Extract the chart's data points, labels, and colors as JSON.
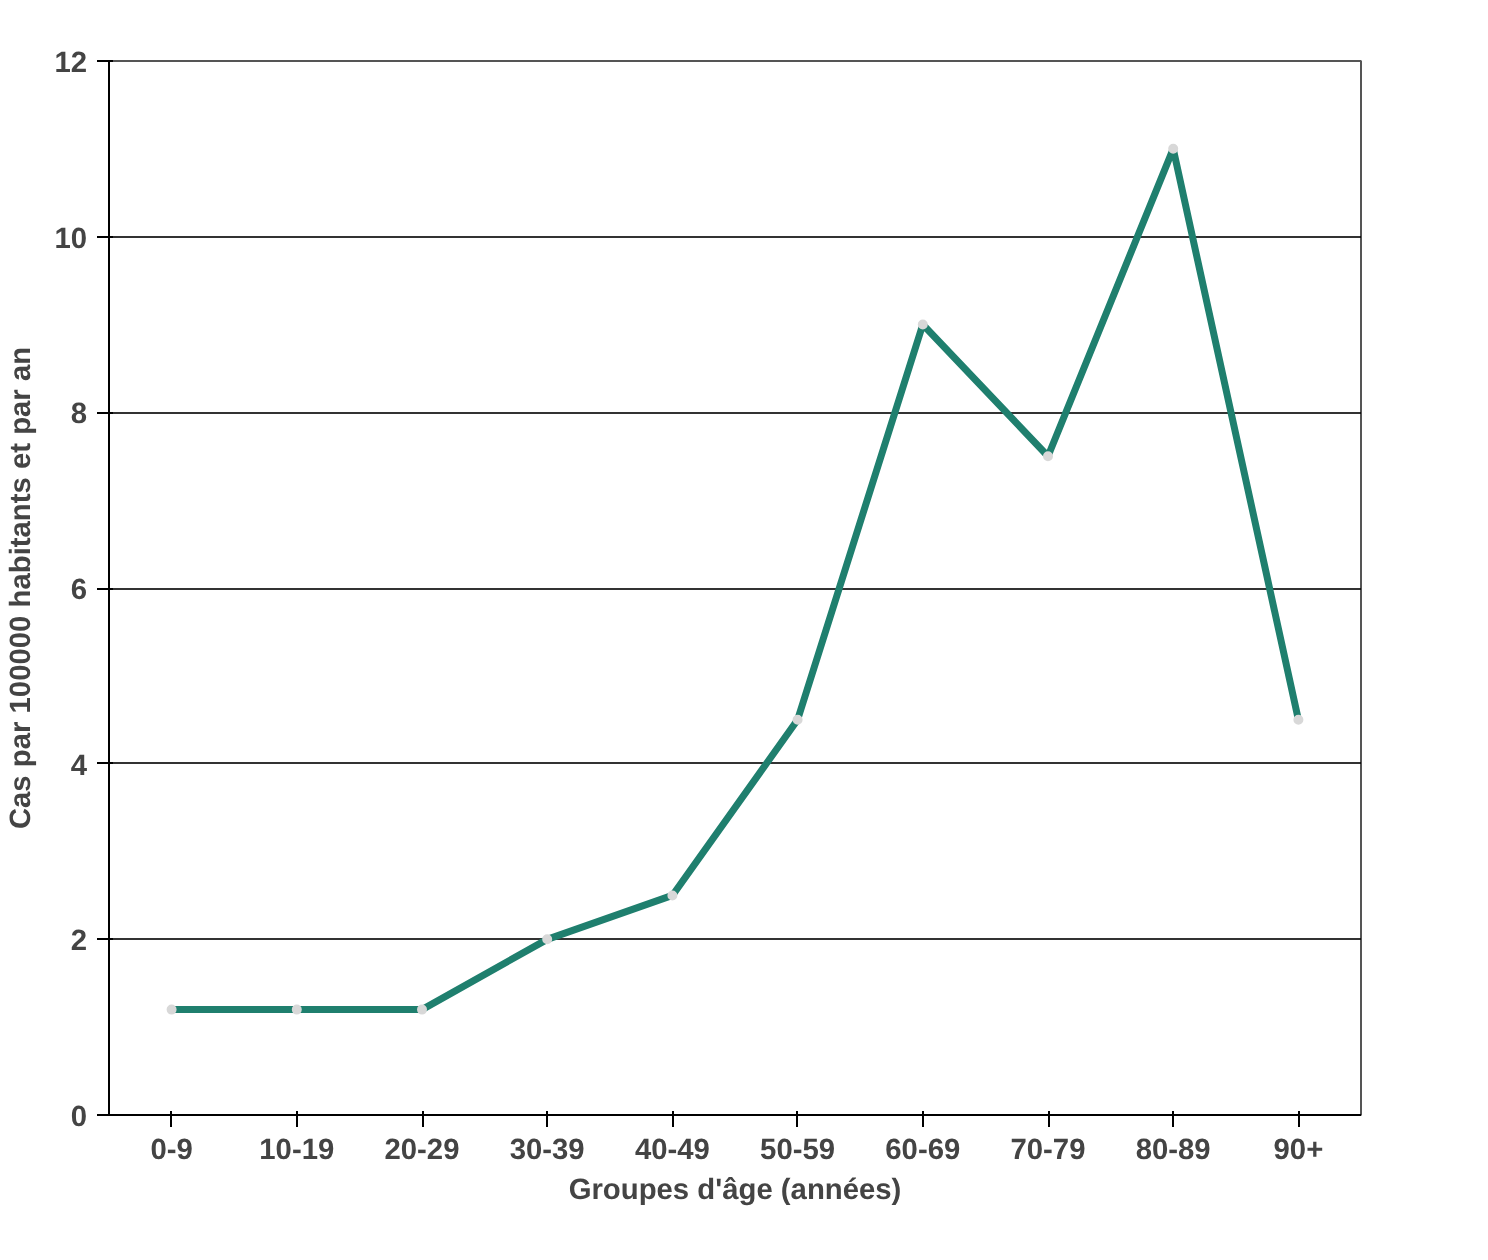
{
  "chart_data": {
    "type": "line",
    "xlabel": "Groupes d'âge (années)",
    "ylabel": "Cas par 100000 habitants et par an",
    "categories": [
      "0-9",
      "10-19",
      "20-29",
      "30-39",
      "40-49",
      "50-59",
      "60-69",
      "70-79",
      "80-89",
      "90+"
    ],
    "series": [
      {
        "color": "#1f7f6e",
        "values": [
          1.2,
          1.2,
          1.2,
          2.0,
          2.5,
          4.5,
          9.0,
          7.5,
          11.0,
          4.5
        ]
      }
    ],
    "ylim": [
      0,
      12
    ],
    "yticks": [
      0,
      2,
      4,
      6,
      8,
      10,
      12
    ],
    "grid": "y",
    "marker": "circle",
    "line_style": "solid"
  }
}
